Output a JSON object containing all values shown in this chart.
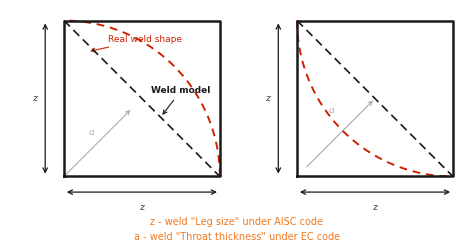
{
  "bg_color": "#ffffff",
  "box_color": "#1a1a1a",
  "red_dashed_color": "#cc2200",
  "black_dashed_color": "#1a1a1a",
  "arrow_color": "#1a1a1a",
  "label_a_color": "#aaaaaa",
  "orange_color": "#f07820",
  "annotation_color": "#1a1a1a",
  "label_text_1": "z - weld \"Leg size\" under AISC code",
  "label_text_2": "a - weld \"Throat thickness\" under EC code",
  "real_weld_label": "Real weld shape",
  "weld_model_label": "Weld model"
}
